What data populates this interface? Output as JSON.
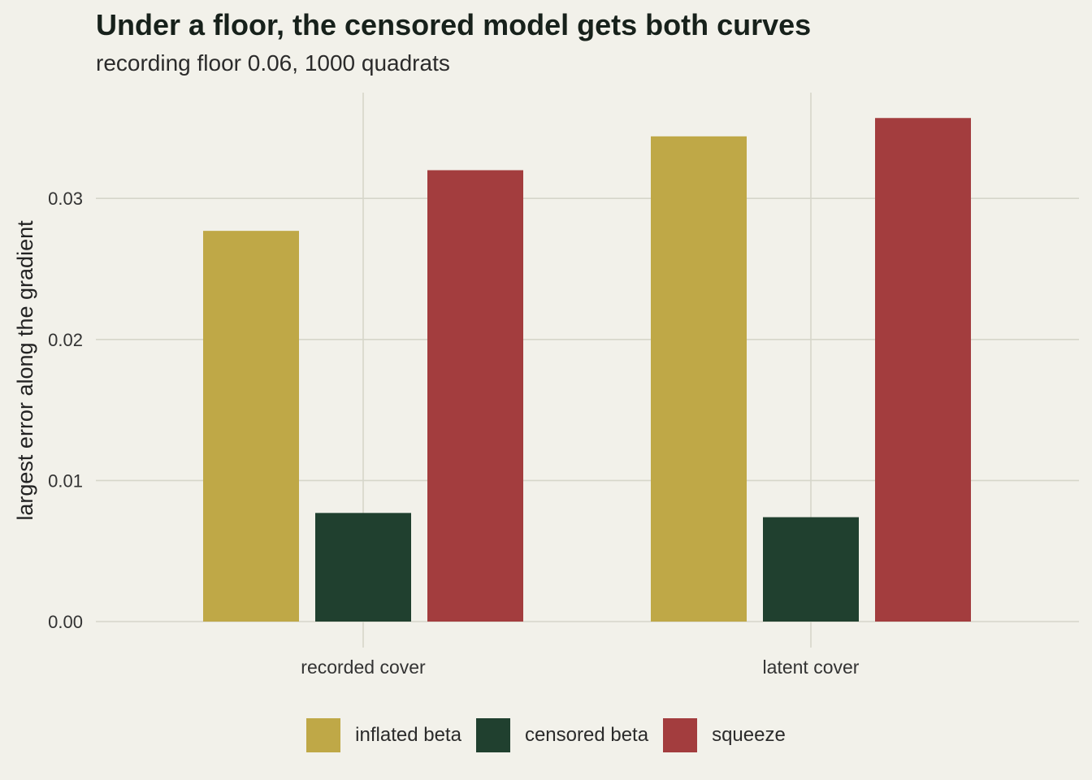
{
  "chart_data": {
    "type": "bar",
    "title": "Under a floor, the censored model gets both curves",
    "subtitle": "recording floor 0.06, 1000 quadrats",
    "xlabel": "",
    "ylabel": "largest error along the gradient",
    "categories": [
      "recorded cover",
      "latent cover"
    ],
    "series": [
      {
        "name": "inflated beta",
        "color": "#bfa847",
        "values": [
          0.0277,
          0.0344
        ]
      },
      {
        "name": "censored beta",
        "color": "#20402f",
        "values": [
          0.0077,
          0.0074
        ]
      },
      {
        "name": "squeeze",
        "color": "#a33d3e",
        "values": [
          0.032,
          0.0357
        ]
      }
    ],
    "yticks": [
      0,
      0.01,
      0.02,
      0.03
    ],
    "ytick_labels": [
      "0.00",
      "0.01",
      "0.02",
      "0.03"
    ],
    "ylim": [
      0,
      0.0375
    ],
    "grid": true,
    "legend_position": "bottom"
  }
}
